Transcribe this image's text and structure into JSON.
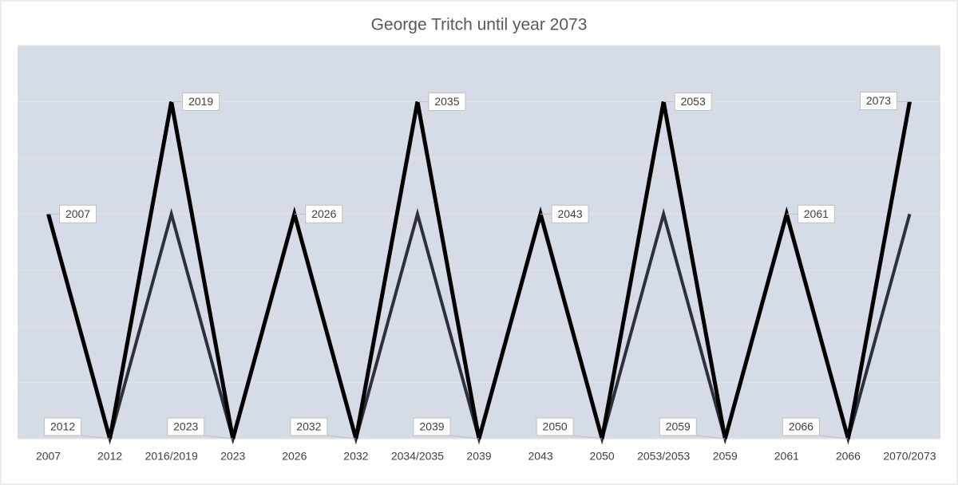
{
  "chart_data": {
    "type": "line",
    "title": "George Tritch until year 2073",
    "categories": [
      "2007",
      "2012",
      "2016/2019",
      "2023",
      "2026",
      "2032",
      "2034/2035",
      "2039",
      "2043",
      "2050",
      "2053/2053",
      "2059",
      "2061",
      "2066",
      "2070/2073"
    ],
    "series": [
      {
        "color": "#2b303b",
        "values": [
          4,
          0,
          4,
          0,
          4,
          0,
          4,
          0,
          4,
          0,
          4,
          0,
          4,
          0,
          4
        ]
      },
      {
        "color": "#000000",
        "values": [
          4,
          0,
          6,
          0,
          4,
          0,
          6,
          0,
          4,
          0,
          6,
          0,
          4,
          0,
          6
        ],
        "data_labels": [
          "2007",
          "2012",
          "2019",
          "2023",
          "2026",
          "2032",
          "2035",
          "2039",
          "2043",
          "2050",
          "2053",
          "2059",
          "2061",
          "2066",
          "2073"
        ]
      }
    ],
    "ylim": [
      0,
      7
    ],
    "yticks": [
      0,
      1,
      2,
      3,
      4,
      5,
      6,
      7
    ],
    "grid": true,
    "show_ytick_labels": false,
    "plot_background": "#d6dce5"
  }
}
